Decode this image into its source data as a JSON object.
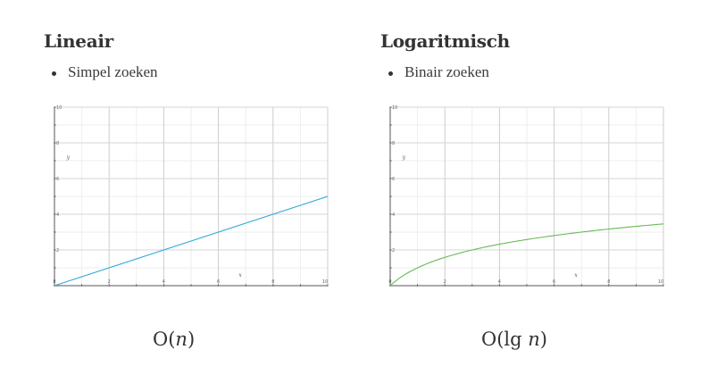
{
  "left": {
    "heading": "Lineair",
    "bullet": "Simpel zoeken",
    "complexity": {
      "prefix": "O(",
      "variable": "n",
      "suffix": ")"
    }
  },
  "right": {
    "heading": "Logaritmisch",
    "bullet": "Binair zoeken",
    "complexity": {
      "prefix": "O(lg ",
      "variable": "n",
      "suffix": ")"
    }
  },
  "chart_data": [
    {
      "type": "line",
      "xlabel": "x",
      "ylabel": "y",
      "xlim": [
        0,
        10
      ],
      "ylim": [
        0,
        10
      ],
      "x_ticks": [
        0,
        2,
        4,
        6,
        8,
        10
      ],
      "y_ticks": [
        2,
        4,
        6,
        8,
        10
      ],
      "grid": true,
      "color": "#29a8db",
      "function": "y = x/2",
      "x": [
        0,
        1,
        2,
        3,
        4,
        5,
        6,
        7,
        8,
        9,
        10
      ],
      "y": [
        0,
        0.5,
        1,
        1.5,
        2,
        2.5,
        3,
        3.5,
        4,
        4.5,
        5
      ]
    },
    {
      "type": "line",
      "xlabel": "x",
      "ylabel": "y",
      "xlim": [
        0,
        10
      ],
      "ylim": [
        0,
        10
      ],
      "x_ticks": [
        0,
        2,
        4,
        6,
        8,
        10
      ],
      "y_ticks": [
        2,
        4,
        6,
        8,
        10
      ],
      "grid": true,
      "color": "#66bb55",
      "function": "y = log2(x + 1)",
      "x": [
        0,
        0.5,
        1,
        2,
        3,
        4,
        5,
        6,
        7,
        8,
        9,
        10
      ],
      "y": [
        0,
        0.58,
        1.0,
        1.58,
        2.0,
        2.32,
        2.58,
        2.81,
        3.0,
        3.17,
        3.32,
        3.46
      ]
    }
  ]
}
